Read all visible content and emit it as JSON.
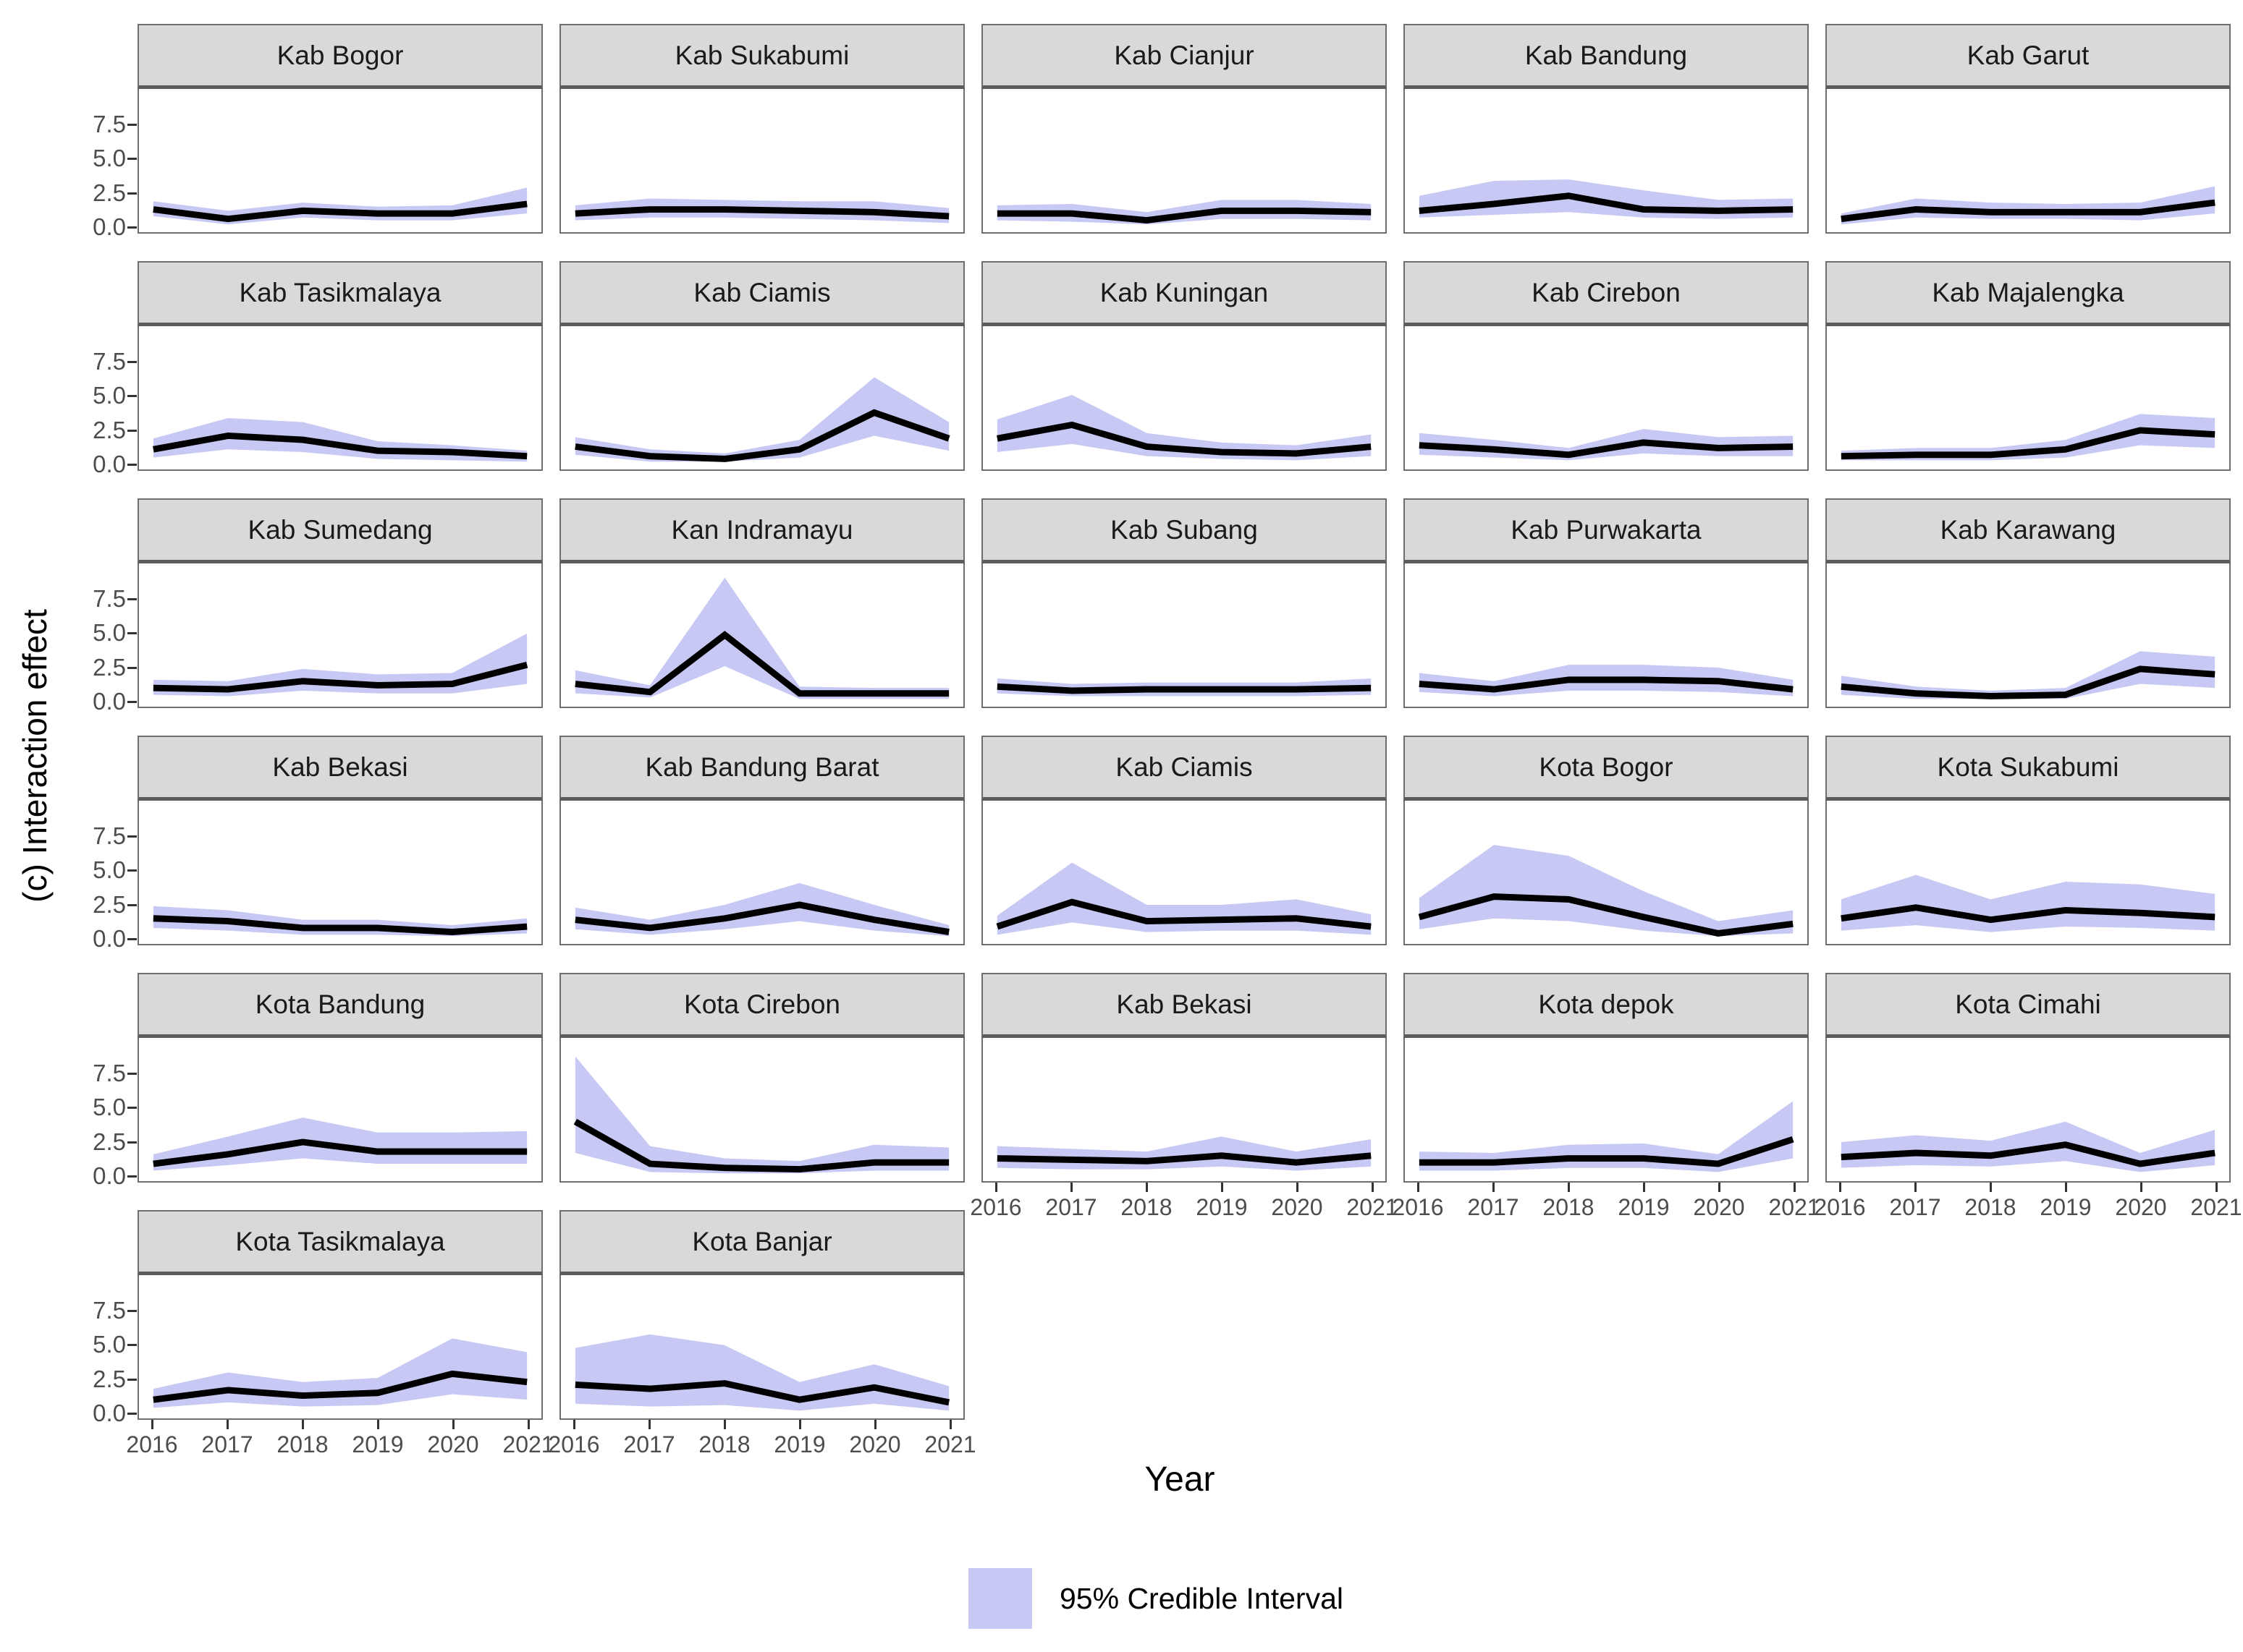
{
  "y_axis_label": "(c) Interaction effect",
  "x_axis_label": "Year",
  "legend": {
    "label": "95% Credible Interval",
    "swatch_color": "#c7c8f3"
  },
  "colors": {
    "ribbon": "#c7c8f3",
    "median_line": "#000000",
    "strip_bg": "#d9d9d9",
    "panel_border": "#6e6e6e",
    "tick_text": "#4d4d4d"
  },
  "axes": {
    "y_tick_labels": [
      "7.5",
      "5.0",
      "2.5",
      "0.0"
    ],
    "x_tick_labels": [
      "2016",
      "2017",
      "2018",
      "2019",
      "2020",
      "2021"
    ]
  },
  "chart_data": {
    "type": "line",
    "x": [
      2016,
      2017,
      2018,
      2019,
      2020,
      2021
    ],
    "ylim": [
      -0.4,
      10.1
    ],
    "y_ticks": [
      0.0,
      2.5,
      5.0,
      7.5
    ],
    "grid": false,
    "legend_position": "bottom",
    "ribbon_meaning": "95% Credible Interval",
    "facets": [
      {
        "name": "Kab Bogor",
        "median": [
          1.2,
          0.5,
          1.1,
          0.9,
          0.9,
          1.6
        ],
        "lower": [
          0.7,
          0.1,
          0.6,
          0.4,
          0.4,
          0.9
        ],
        "upper": [
          1.8,
          1.1,
          1.7,
          1.4,
          1.5,
          2.8
        ]
      },
      {
        "name": "Kab Sukabumi",
        "median": [
          0.9,
          1.2,
          1.2,
          1.1,
          1.0,
          0.7
        ],
        "lower": [
          0.4,
          0.6,
          0.6,
          0.5,
          0.4,
          0.2
        ],
        "upper": [
          1.5,
          2.0,
          1.9,
          1.8,
          1.8,
          1.3
        ]
      },
      {
        "name": "Kab Cianjur",
        "median": [
          0.9,
          0.9,
          0.4,
          1.1,
          1.1,
          1.0
        ],
        "lower": [
          0.4,
          0.3,
          0.1,
          0.5,
          0.5,
          0.4
        ],
        "upper": [
          1.5,
          1.6,
          1.0,
          1.9,
          1.9,
          1.6
        ]
      },
      {
        "name": "Kab Bandung",
        "median": [
          1.1,
          1.6,
          2.2,
          1.2,
          1.1,
          1.2
        ],
        "lower": [
          0.6,
          0.8,
          1.0,
          0.6,
          0.5,
          0.6
        ],
        "upper": [
          2.2,
          3.3,
          3.4,
          2.6,
          1.9,
          2.0
        ]
      },
      {
        "name": "Kab Garut",
        "median": [
          0.5,
          1.2,
          1.0,
          1.0,
          1.0,
          1.7
        ],
        "lower": [
          0.1,
          0.6,
          0.5,
          0.5,
          0.4,
          0.9
        ],
        "upper": [
          0.9,
          2.0,
          1.7,
          1.6,
          1.7,
          2.9
        ]
      },
      {
        "name": "Kab Tasikmalaya",
        "median": [
          1.0,
          2.0,
          1.7,
          0.9,
          0.8,
          0.5
        ],
        "lower": [
          0.4,
          1.0,
          0.8,
          0.3,
          0.2,
          0.1
        ],
        "upper": [
          1.8,
          3.3,
          3.0,
          1.6,
          1.3,
          0.9
        ]
      },
      {
        "name": "Kab Ciamis",
        "median": [
          1.2,
          0.5,
          0.3,
          1.0,
          3.7,
          1.8
        ],
        "lower": [
          0.6,
          0.1,
          0.1,
          0.4,
          2.0,
          0.9
        ],
        "upper": [
          1.9,
          1.0,
          0.7,
          1.7,
          6.3,
          3.0
        ]
      },
      {
        "name": "Kab Kuningan",
        "median": [
          1.8,
          2.8,
          1.2,
          0.8,
          0.7,
          1.2
        ],
        "lower": [
          0.8,
          1.4,
          0.5,
          0.3,
          0.2,
          0.5
        ],
        "upper": [
          3.2,
          5.0,
          2.2,
          1.5,
          1.3,
          2.1
        ]
      },
      {
        "name": "Kab Cirebon",
        "median": [
          1.3,
          1.0,
          0.6,
          1.5,
          1.1,
          1.2
        ],
        "lower": [
          0.6,
          0.4,
          0.2,
          0.7,
          0.5,
          0.5
        ],
        "upper": [
          2.2,
          1.7,
          1.1,
          2.5,
          1.9,
          2.0
        ]
      },
      {
        "name": "Kab Majalengka",
        "median": [
          0.5,
          0.6,
          0.6,
          1.0,
          2.4,
          2.1
        ],
        "lower": [
          0.2,
          0.2,
          0.2,
          0.4,
          1.3,
          1.1
        ],
        "upper": [
          0.9,
          1.1,
          1.1,
          1.7,
          3.6,
          3.3
        ]
      },
      {
        "name": "Kab Sumedang",
        "median": [
          0.9,
          0.8,
          1.4,
          1.1,
          1.2,
          2.6
        ],
        "lower": [
          0.4,
          0.3,
          0.7,
          0.5,
          0.5,
          1.2
        ],
        "upper": [
          1.5,
          1.4,
          2.3,
          1.9,
          2.0,
          4.9
        ]
      },
      {
        "name": "Kan Indramayu",
        "median": [
          1.2,
          0.6,
          4.8,
          0.5,
          0.5,
          0.5
        ],
        "lower": [
          0.5,
          0.2,
          2.5,
          0.1,
          0.1,
          0.1
        ],
        "upper": [
          2.2,
          1.1,
          9.0,
          1.0,
          0.9,
          0.9
        ]
      },
      {
        "name": "Kab Subang",
        "median": [
          1.0,
          0.7,
          0.8,
          0.8,
          0.8,
          0.9
        ],
        "lower": [
          0.5,
          0.3,
          0.3,
          0.3,
          0.3,
          0.4
        ],
        "upper": [
          1.6,
          1.2,
          1.3,
          1.3,
          1.3,
          1.6
        ]
      },
      {
        "name": "Kab Purwakarta",
        "median": [
          1.2,
          0.8,
          1.5,
          1.5,
          1.4,
          0.8
        ],
        "lower": [
          0.6,
          0.3,
          0.7,
          0.7,
          0.6,
          0.3
        ],
        "upper": [
          2.0,
          1.4,
          2.6,
          2.6,
          2.4,
          1.5
        ]
      },
      {
        "name": "Kab Karawang",
        "median": [
          1.0,
          0.5,
          0.3,
          0.4,
          2.3,
          1.9
        ],
        "lower": [
          0.4,
          0.1,
          0.1,
          0.1,
          1.2,
          0.9
        ],
        "upper": [
          1.8,
          1.0,
          0.7,
          0.9,
          3.6,
          3.2
        ]
      },
      {
        "name": "Kab Bekasi",
        "median": [
          1.4,
          1.2,
          0.7,
          0.7,
          0.4,
          0.8
        ],
        "lower": [
          0.7,
          0.5,
          0.2,
          0.2,
          0.1,
          0.3
        ],
        "upper": [
          2.3,
          2.0,
          1.3,
          1.3,
          0.9,
          1.4
        ]
      },
      {
        "name": "Kab Bandung Barat",
        "median": [
          1.3,
          0.7,
          1.4,
          2.4,
          1.3,
          0.4
        ],
        "lower": [
          0.6,
          0.2,
          0.6,
          1.2,
          0.5,
          0.1
        ],
        "upper": [
          2.2,
          1.3,
          2.4,
          4.0,
          2.4,
          0.9
        ]
      },
      {
        "name": "Kab Ciamis",
        "median": [
          0.8,
          2.6,
          1.2,
          1.3,
          1.4,
          0.8
        ],
        "lower": [
          0.2,
          1.1,
          0.4,
          0.5,
          0.5,
          0.2
        ],
        "upper": [
          1.6,
          5.5,
          2.4,
          2.4,
          2.8,
          1.7
        ]
      },
      {
        "name": "Kota Bogor",
        "median": [
          1.5,
          3.0,
          2.8,
          1.5,
          0.3,
          1.0
        ],
        "lower": [
          0.6,
          1.4,
          1.2,
          0.5,
          0.1,
          0.3
        ],
        "upper": [
          2.9,
          6.8,
          6.0,
          3.4,
          1.2,
          2.0
        ]
      },
      {
        "name": "Kota Sukabumi",
        "median": [
          1.4,
          2.2,
          1.3,
          2.0,
          1.8,
          1.5
        ],
        "lower": [
          0.5,
          0.9,
          0.4,
          0.8,
          0.7,
          0.5
        ],
        "upper": [
          2.8,
          4.6,
          2.8,
          4.1,
          3.9,
          3.2
        ]
      },
      {
        "name": "Kota Bandung",
        "median": [
          0.8,
          1.5,
          2.4,
          1.7,
          1.7,
          1.7
        ],
        "lower": [
          0.3,
          0.7,
          1.2,
          0.8,
          0.8,
          0.8
        ],
        "upper": [
          1.5,
          2.8,
          4.2,
          3.1,
          3.1,
          3.2
        ]
      },
      {
        "name": "Kota Cirebon",
        "median": [
          3.9,
          0.8,
          0.5,
          0.4,
          0.9,
          0.9
        ],
        "lower": [
          1.6,
          0.2,
          0.1,
          0.1,
          0.3,
          0.3
        ],
        "upper": [
          8.7,
          2.1,
          1.2,
          1.0,
          2.2,
          2.0
        ]
      },
      {
        "name": "Kab Bekasi",
        "median": [
          1.2,
          1.1,
          1.0,
          1.4,
          0.9,
          1.4
        ],
        "lower": [
          0.5,
          0.4,
          0.4,
          0.6,
          0.3,
          0.6
        ],
        "upper": [
          2.1,
          1.9,
          1.7,
          2.8,
          1.7,
          2.6
        ]
      },
      {
        "name": "Kota depok",
        "median": [
          0.9,
          0.9,
          1.2,
          1.2,
          0.8,
          2.6
        ],
        "lower": [
          0.3,
          0.3,
          0.5,
          0.5,
          0.2,
          1.2
        ],
        "upper": [
          1.7,
          1.6,
          2.2,
          2.3,
          1.5,
          5.4
        ]
      },
      {
        "name": "Kota Cimahi",
        "median": [
          1.3,
          1.6,
          1.4,
          2.2,
          0.8,
          1.6
        ],
        "lower": [
          0.5,
          0.7,
          0.6,
          1.0,
          0.2,
          0.7
        ],
        "upper": [
          2.4,
          2.9,
          2.5,
          3.9,
          1.6,
          3.3
        ]
      },
      {
        "name": "Kota Tasikmalaya",
        "median": [
          0.9,
          1.6,
          1.2,
          1.4,
          2.8,
          2.2
        ],
        "lower": [
          0.3,
          0.7,
          0.4,
          0.5,
          1.3,
          0.9
        ],
        "upper": [
          1.7,
          2.9,
          2.2,
          2.5,
          5.4,
          4.4
        ]
      },
      {
        "name": "Kota Banjar",
        "median": [
          2.0,
          1.7,
          2.1,
          0.9,
          1.8,
          0.7
        ],
        "lower": [
          0.6,
          0.4,
          0.5,
          0.1,
          0.6,
          0.1
        ],
        "upper": [
          4.7,
          5.7,
          4.9,
          2.2,
          3.5,
          1.9
        ]
      }
    ]
  }
}
